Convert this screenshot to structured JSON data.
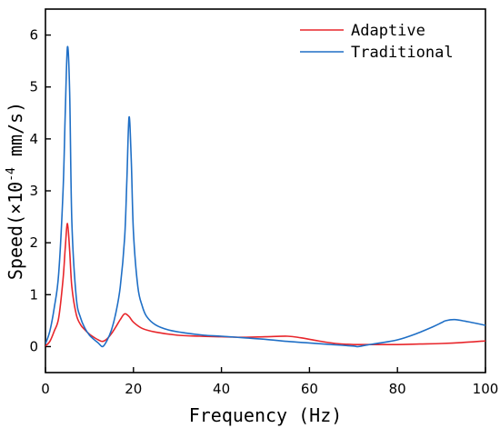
{
  "chart_data": {
    "type": "line",
    "xlabel": "Frequency (Hz)",
    "ylabel_main": "Speed(×10",
    "ylabel_exp": "-4",
    "ylabel_unit": " mm/s)",
    "xlim": [
      0,
      100
    ],
    "ylim": [
      -0.5,
      6.5
    ],
    "x_ticks": [
      0,
      20,
      40,
      60,
      80,
      100
    ],
    "y_ticks": [
      0,
      1,
      2,
      3,
      4,
      5,
      6
    ],
    "grid": false,
    "legend_position": "top-right",
    "series": [
      {
        "name": "Adaptive",
        "color": "#e8262b",
        "x": [
          0,
          1,
          2,
          3,
          4,
          4.5,
          5,
          5.5,
          6,
          7,
          8,
          9,
          10,
          11,
          12,
          13,
          14,
          15,
          16,
          17,
          18,
          19,
          20,
          22,
          25,
          30,
          35,
          40,
          45,
          50,
          55,
          58,
          62,
          66,
          70,
          75,
          80,
          85,
          90,
          95,
          100
        ],
        "y": [
          0.01,
          0.1,
          0.3,
          0.55,
          1.3,
          1.9,
          2.37,
          1.85,
          1.15,
          0.62,
          0.42,
          0.32,
          0.24,
          0.18,
          0.13,
          0.1,
          0.15,
          0.25,
          0.38,
          0.52,
          0.63,
          0.58,
          0.47,
          0.35,
          0.28,
          0.22,
          0.2,
          0.19,
          0.18,
          0.19,
          0.2,
          0.17,
          0.11,
          0.06,
          0.04,
          0.04,
          0.04,
          0.05,
          0.06,
          0.08,
          0.11
        ]
      },
      {
        "name": "Traditional",
        "color": "#1f6fc6",
        "x": [
          0,
          1,
          2,
          3,
          4,
          4.5,
          5,
          5.5,
          6,
          7,
          8,
          9,
          10,
          11,
          12,
          13,
          14,
          15,
          16,
          17,
          18,
          18.5,
          19,
          19.5,
          20,
          21,
          22,
          23,
          25,
          28,
          32,
          36,
          40,
          45,
          50,
          55,
          60,
          65,
          70,
          71,
          73,
          76,
          80,
          84,
          88,
          90,
          91,
          93,
          96,
          100
        ],
        "y": [
          0.05,
          0.3,
          0.75,
          1.4,
          3.0,
          4.5,
          5.77,
          4.9,
          2.4,
          0.95,
          0.55,
          0.35,
          0.22,
          0.14,
          0.07,
          0.0,
          0.12,
          0.32,
          0.65,
          1.15,
          2.1,
          3.2,
          4.42,
          3.6,
          2.2,
          1.15,
          0.78,
          0.58,
          0.42,
          0.32,
          0.26,
          0.22,
          0.2,
          0.17,
          0.14,
          0.1,
          0.07,
          0.04,
          0.01,
          0.0,
          0.03,
          0.07,
          0.13,
          0.24,
          0.38,
          0.46,
          0.5,
          0.52,
          0.48,
          0.41
        ]
      }
    ]
  }
}
